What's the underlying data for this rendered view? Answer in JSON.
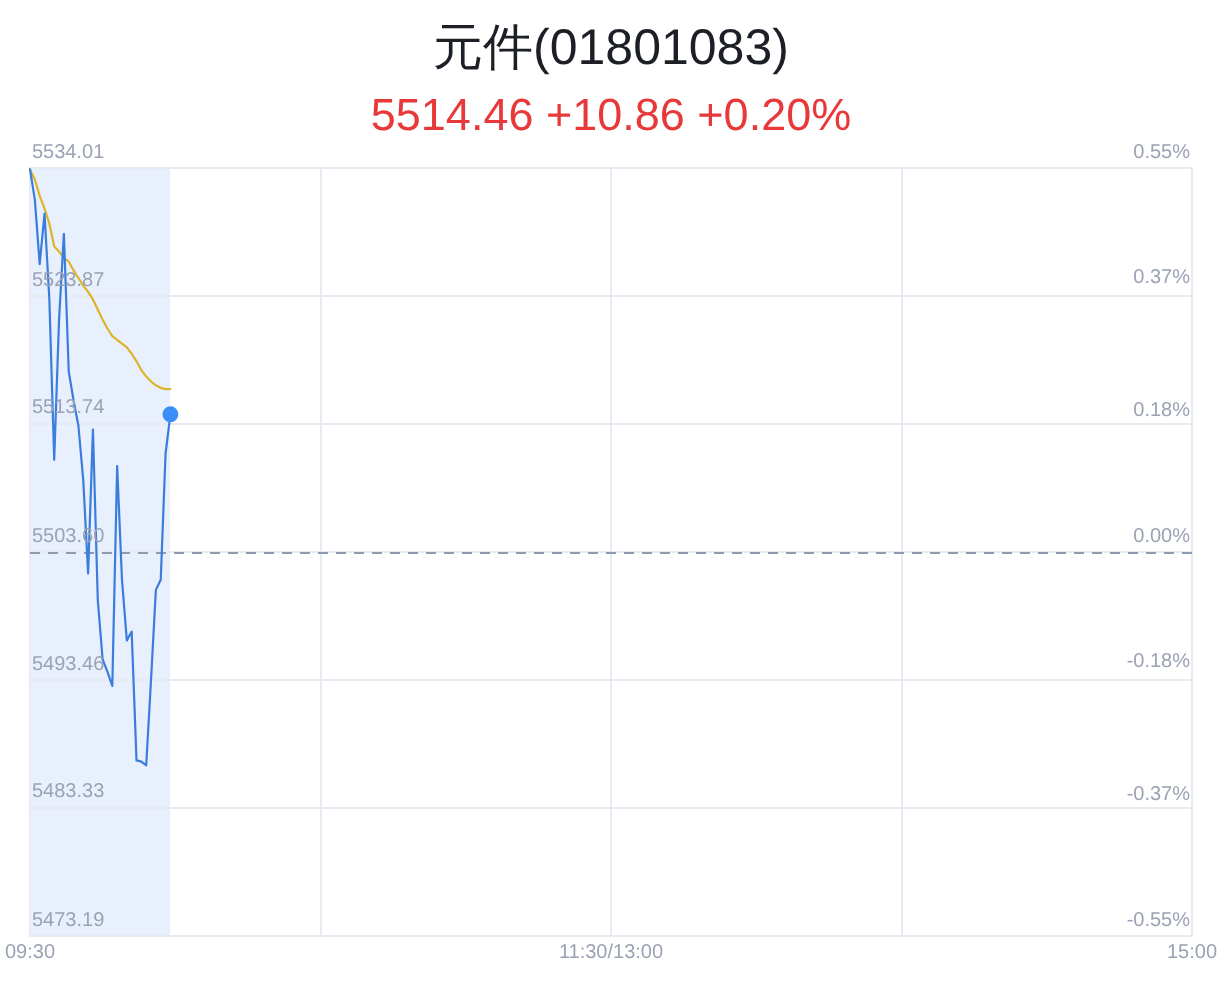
{
  "chart_data": {
    "type": "line",
    "title": "元件(01801083)",
    "subtitle": "5514.46 +10.86 +0.20%",
    "categories": [
      "09:30",
      null,
      null,
      null,
      null,
      null,
      null,
      null,
      null,
      null,
      null,
      null,
      null,
      null,
      null,
      null,
      null,
      null,
      null,
      null,
      null,
      null,
      null,
      null,
      null,
      null,
      null,
      null,
      null,
      null,
      null,
      null,
      null,
      null,
      null,
      null,
      null,
      null,
      null,
      null,
      null,
      null,
      null,
      null,
      null,
      null,
      null,
      null,
      null,
      null,
      null,
      null,
      null,
      null,
      null,
      null,
      null,
      null,
      null,
      null,
      null,
      null,
      null,
      null,
      null,
      null,
      null,
      null,
      null,
      null,
      null,
      null,
      null,
      null,
      null,
      null,
      null,
      null,
      null,
      null,
      null,
      null,
      null,
      null,
      null,
      null,
      null,
      null,
      null,
      null,
      null,
      null,
      null,
      null,
      null,
      null,
      null,
      null,
      null,
      null,
      null,
      null,
      null,
      null,
      null,
      null,
      null,
      null,
      null,
      null,
      null,
      null,
      null,
      null,
      null,
      null,
      null,
      null,
      null,
      null,
      "11:30/13:00",
      null,
      null,
      null,
      null,
      null,
      null,
      null,
      null,
      null,
      null,
      null,
      null,
      null,
      null,
      null,
      null,
      null,
      null,
      null,
      null,
      null,
      null,
      null,
      null,
      null,
      null,
      null,
      null,
      null,
      null,
      null,
      null,
      null,
      null,
      null,
      null,
      null,
      null,
      null,
      null,
      null,
      null,
      null,
      null,
      null,
      null,
      null,
      null,
      null,
      null,
      null,
      null,
      null,
      null,
      null,
      null,
      null,
      null,
      null,
      null,
      null,
      null,
      null,
      null,
      null,
      null,
      null,
      null,
      null,
      null,
      null,
      null,
      null,
      null,
      null,
      null,
      null,
      null,
      null,
      null,
      null,
      null,
      null,
      null,
      null,
      null,
      null,
      null,
      null,
      null,
      null,
      null,
      null,
      null,
      null,
      null,
      null,
      null,
      null,
      null,
      null,
      null,
      null,
      null,
      null,
      null,
      null,
      null,
      null,
      null,
      null,
      null,
      null,
      null,
      null,
      null,
      null,
      null,
      null,
      "15:00"
    ],
    "ylim": [
      5473.19,
      5534.01
    ],
    "yticks": [
      {
        "value": 5473.19,
        "label": "5473.19"
      },
      {
        "value": 5483.33,
        "label": "5483.33"
      },
      {
        "value": 5493.46,
        "label": "5493.46"
      },
      {
        "value": 5503.6,
        "label": "5503.60"
      },
      {
        "value": 5513.74,
        "label": "5513.74"
      },
      {
        "value": 5523.87,
        "label": "5523.87"
      },
      {
        "value": 5534.01,
        "label": "5534.01"
      }
    ],
    "y2lim": [
      -0.55,
      0.55
    ],
    "y2ticks": [
      {
        "value": -0.55,
        "label": "-0.55%"
      },
      {
        "value": -0.37,
        "label": "-0.37%"
      },
      {
        "value": -0.18,
        "label": "-0.18%"
      },
      {
        "value": 0,
        "label": "0.00%"
      },
      {
        "value": 0.18,
        "label": "0.18%"
      },
      {
        "value": 0.37,
        "label": "0.37%"
      },
      {
        "value": 0.55,
        "label": "0.55%"
      }
    ],
    "series": [
      {
        "color": "#3b7ddd",
        "values": [
          5533.9,
          5531.5,
          5526.4,
          5530.4,
          5523.6,
          5510.9,
          5522.0,
          5528.8,
          5517.9,
          5515.6,
          5513.6,
          5509.3,
          5501.9,
          5513.3,
          5499.8,
          5495.1,
          5494.1,
          5493.0,
          5510.4,
          5501.4,
          5496.6,
          5497.3,
          5487.1,
          5487.0,
          5486.7,
          5493.5,
          5500.6,
          5501.4,
          5511.4,
          5514.5,
          null,
          null,
          null,
          null,
          null,
          null,
          null,
          null,
          null,
          null,
          null,
          null,
          null,
          null,
          null,
          null,
          null,
          null,
          null,
          null,
          null,
          null,
          null,
          null,
          null,
          null,
          null,
          null,
          null,
          null,
          null,
          null,
          null,
          null,
          null,
          null,
          null,
          null,
          null,
          null,
          null,
          null,
          null,
          null,
          null,
          null,
          null,
          null,
          null,
          null,
          null,
          null,
          null,
          null,
          null,
          null,
          null,
          null,
          null,
          null,
          null,
          null,
          null,
          null,
          null,
          null,
          null,
          null,
          null,
          null,
          null,
          null,
          null,
          null,
          null,
          null,
          null,
          null,
          null,
          null,
          null,
          null,
          null,
          null,
          null,
          null,
          null,
          null,
          null,
          null,
          null,
          null,
          null,
          null,
          null,
          null,
          null,
          null,
          null,
          null,
          null,
          null,
          null,
          null,
          null,
          null,
          null,
          null,
          null,
          null,
          null,
          null,
          null,
          null,
          null,
          null,
          null,
          null,
          null,
          null,
          null,
          null,
          null,
          null,
          null,
          null,
          null,
          null,
          null,
          null,
          null,
          null,
          null,
          null,
          null,
          null,
          null,
          null,
          null,
          null,
          null,
          null,
          null,
          null,
          null,
          null,
          null,
          null,
          null,
          null,
          null,
          null,
          null,
          null,
          null,
          null,
          null,
          null,
          null,
          null,
          null,
          null,
          null,
          null,
          null,
          null,
          null,
          null,
          null,
          null,
          null,
          null,
          null,
          null,
          null,
          null,
          null,
          null,
          null,
          null,
          null,
          null,
          null,
          null,
          null,
          null,
          null,
          null,
          null,
          null,
          null,
          null,
          null,
          null,
          null,
          null,
          null,
          null,
          null,
          null,
          null,
          null,
          null,
          null,
          null,
          null,
          null,
          null,
          null,
          null,
          null
        ]
      },
      {
        "color": "#dcb42a",
        "values": [
          5533.9,
          5533.1,
          5531.8,
          5530.8,
          5529.6,
          5527.8,
          5527.4,
          5526.9,
          5526.6,
          5525.9,
          5525.3,
          5524.7,
          5524.2,
          5523.6,
          5522.8,
          5522.0,
          5521.3,
          5520.7,
          5520.4,
          5520.1,
          5519.8,
          5519.3,
          5518.7,
          5518.0,
          5517.5,
          5517.1,
          5516.8,
          5516.6,
          5516.5,
          5516.5,
          null,
          null,
          null,
          null,
          null,
          null,
          null,
          null,
          null,
          null,
          null,
          null,
          null,
          null,
          null,
          null,
          null,
          null,
          null,
          null,
          null,
          null,
          null,
          null,
          null,
          null,
          null,
          null,
          null,
          null,
          null,
          null,
          null,
          null,
          null,
          null,
          null,
          null,
          null,
          null,
          null,
          null,
          null,
          null,
          null,
          null,
          null,
          null,
          null,
          null,
          null,
          null,
          null,
          null,
          null,
          null,
          null,
          null,
          null,
          null,
          null,
          null,
          null,
          null,
          null,
          null,
          null,
          null,
          null,
          null,
          null,
          null,
          null,
          null,
          null,
          null,
          null,
          null,
          null,
          null,
          null,
          null,
          null,
          null,
          null,
          null,
          null,
          null,
          null,
          null,
          null,
          null,
          null,
          null,
          null,
          null,
          null,
          null,
          null,
          null,
          null,
          null,
          null,
          null,
          null,
          null,
          null,
          null,
          null,
          null,
          null,
          null,
          null,
          null,
          null,
          null,
          null,
          null,
          null,
          null,
          null,
          null,
          null,
          null,
          null,
          null,
          null,
          null,
          null,
          null,
          null,
          null,
          null,
          null,
          null,
          null,
          null,
          null,
          null,
          null,
          null,
          null,
          null,
          null,
          null,
          null,
          null,
          null,
          null,
          null,
          null,
          null,
          null,
          null,
          null,
          null,
          null,
          null,
          null,
          null,
          null,
          null,
          null,
          null,
          null,
          null,
          null,
          null,
          null,
          null,
          null,
          null,
          null,
          null,
          null,
          null,
          null,
          null,
          null,
          null,
          null,
          null,
          null,
          null,
          null,
          null,
          null,
          null,
          null,
          null,
          null,
          null,
          null,
          null,
          null,
          null,
          null,
          null,
          null,
          null,
          null,
          null,
          null,
          null,
          null,
          null,
          null,
          null,
          null,
          null,
          null
        ]
      },
      {
        "type": "scatter",
        "color": "#3a8ef6",
        "marker": "circle",
        "values": [
          null,
          null,
          null,
          null,
          null,
          null,
          null,
          null,
          null,
          null,
          null,
          null,
          null,
          null,
          null,
          null,
          null,
          null,
          null,
          null,
          null,
          null,
          null,
          null,
          null,
          null,
          null,
          null,
          null,
          5514.5,
          null,
          null,
          null,
          null,
          null,
          null,
          null,
          null,
          null,
          null,
          null,
          null,
          null,
          null,
          null,
          null,
          null,
          null,
          null,
          null,
          null,
          null,
          null,
          null,
          null,
          null,
          null,
          null,
          null,
          null,
          null,
          null,
          null,
          null,
          null,
          null,
          null,
          null,
          null,
          null,
          null,
          null,
          null,
          null,
          null,
          null,
          null,
          null,
          null,
          null,
          null,
          null,
          null,
          null,
          null,
          null,
          null,
          null,
          null,
          null,
          null,
          null,
          null,
          null,
          null,
          null,
          null,
          null,
          null,
          null,
          null,
          null,
          null,
          null,
          null,
          null,
          null,
          null,
          null,
          null,
          null,
          null,
          null,
          null,
          null,
          null,
          null,
          null,
          null,
          null,
          null,
          null,
          null,
          null,
          null,
          null,
          null,
          null,
          null,
          null,
          null,
          null,
          null,
          null,
          null,
          null,
          null,
          null,
          null,
          null,
          null,
          null,
          null,
          null,
          null,
          null,
          null,
          null,
          null,
          null,
          null,
          null,
          null,
          null,
          null,
          null,
          null,
          null,
          null,
          null,
          null,
          null,
          null,
          null,
          null,
          null,
          null,
          null,
          null,
          null,
          null,
          null,
          null,
          null,
          null,
          null,
          null,
          null,
          null,
          null,
          null,
          null,
          null,
          null,
          null,
          null,
          null,
          null,
          null,
          null,
          null,
          null,
          null,
          null,
          null,
          null,
          null,
          null,
          null,
          null,
          null,
          null,
          null,
          null,
          null,
          null,
          null,
          null,
          null,
          null,
          null,
          null,
          null,
          null,
          null,
          null,
          null,
          null,
          null,
          null,
          null,
          null,
          null,
          null,
          null,
          null,
          null,
          null,
          null,
          null,
          null,
          null,
          null,
          null,
          null,
          null,
          null,
          null,
          null,
          null,
          null
        ]
      }
    ],
    "ref_lines": [
      {
        "axis": "y",
        "value": 5503.6,
        "color": "#8e9ab0",
        "line_style": "dashed"
      }
    ],
    "grid": true,
    "legend": false,
    "marker": "none"
  }
}
